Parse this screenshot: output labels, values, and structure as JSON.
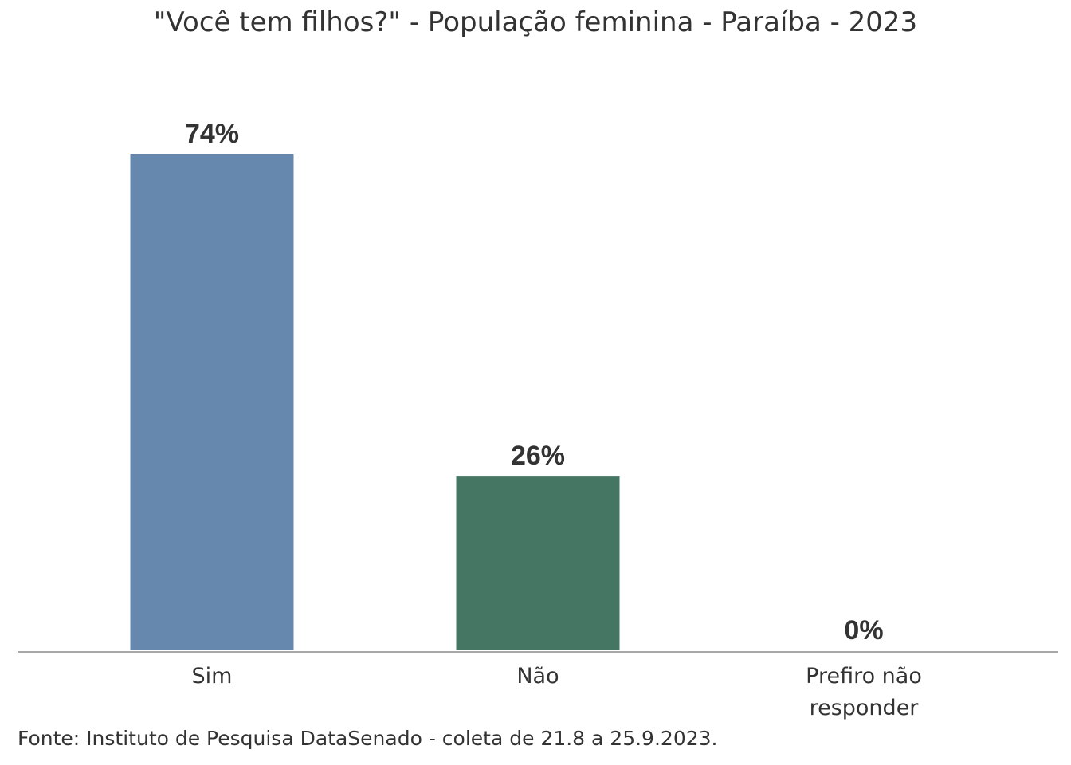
{
  "chart_data": {
    "type": "bar",
    "title": "\"Você tem filhos?\" - População feminina - Paraíba - 2023",
    "categories": [
      "Sim",
      "Não",
      "Prefiro não responder"
    ],
    "category_lines": [
      [
        "Sim"
      ],
      [
        "Não"
      ],
      [
        "Prefiro não",
        "responder"
      ]
    ],
    "values": [
      74,
      26,
      0
    ],
    "value_labels": [
      "74%",
      "26%",
      "0%"
    ],
    "colors": [
      "#6688ae",
      "#457563",
      "#6688ae"
    ],
    "xlabel": "",
    "ylabel": "",
    "ylim": [
      0,
      74
    ],
    "grid": false,
    "legend": "none",
    "source": "Fonte: Instituto de Pesquisa DataSenado - coleta de 21.8 a 25.9.2023."
  }
}
